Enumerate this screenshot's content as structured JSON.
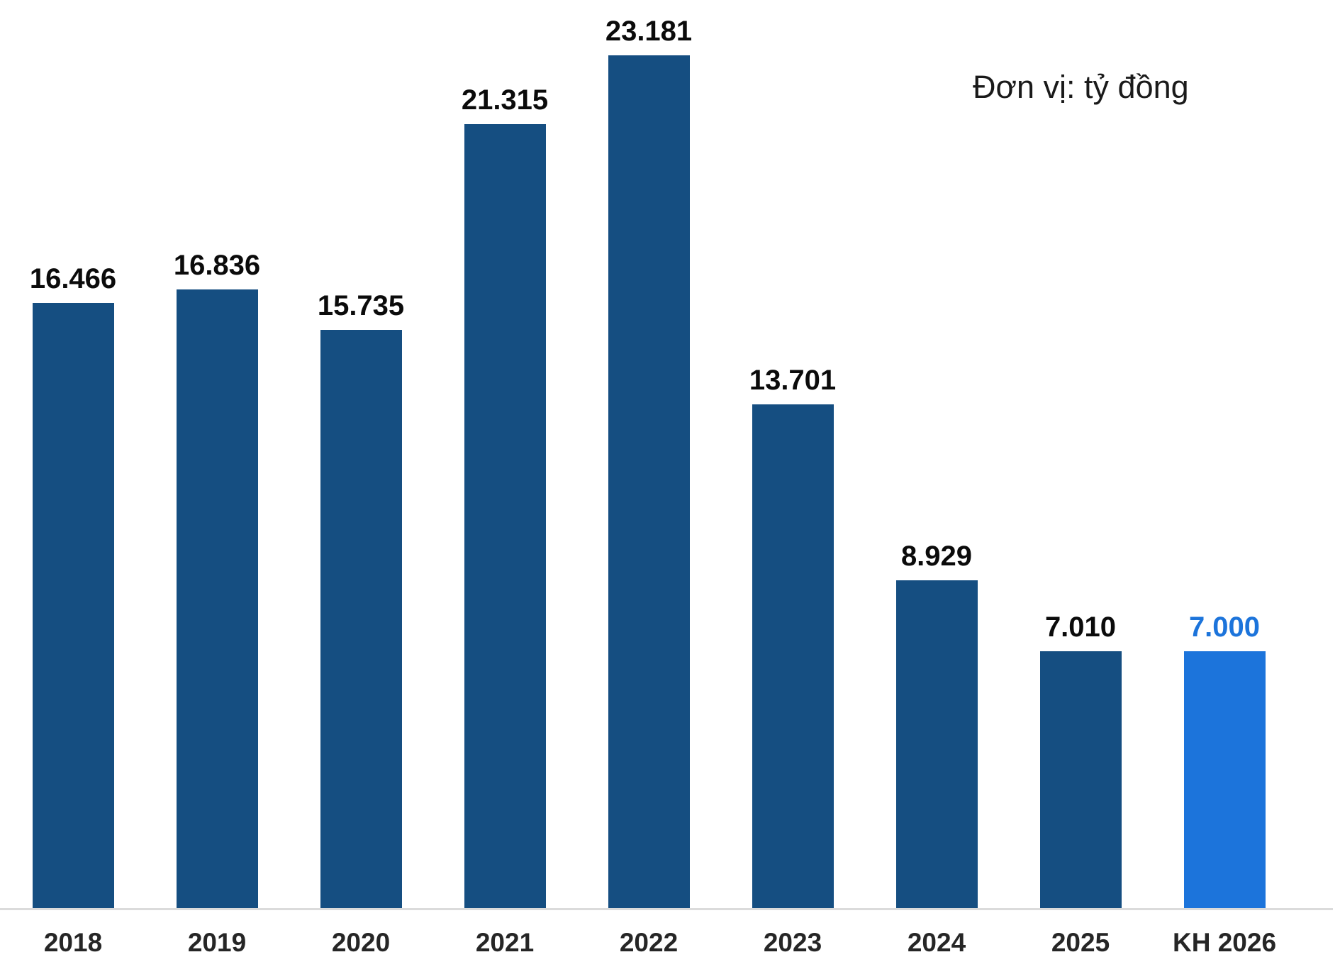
{
  "chart_data": {
    "type": "bar",
    "title": "",
    "annotation": "Đơn vị: tỷ đồng",
    "unit": "tỷ đồng",
    "categories": [
      "2018",
      "2019",
      "2020",
      "2021",
      "2022",
      "2023",
      "2024",
      "2025",
      "KH 2026"
    ],
    "values": [
      16466,
      16836,
      15735,
      21315,
      23181,
      13701,
      8929,
      7010,
      7000
    ],
    "value_labels": [
      "16.466",
      "16.836",
      "15.735",
      "21.315",
      "23.181",
      "13.701",
      "8.929",
      "7.010",
      "7.000"
    ],
    "highlight_index": 8,
    "ylim": [
      0,
      24000
    ],
    "grid": false,
    "legend": false,
    "xlabel": "",
    "ylabel": "",
    "colors": {
      "bar": "#154E81",
      "highlight_bar": "#1C74DB",
      "value_label": "#0B0B0B",
      "highlight_value_label": "#1C74DB",
      "category_label": "#262626",
      "axis_line": "#DBDBDB"
    }
  }
}
